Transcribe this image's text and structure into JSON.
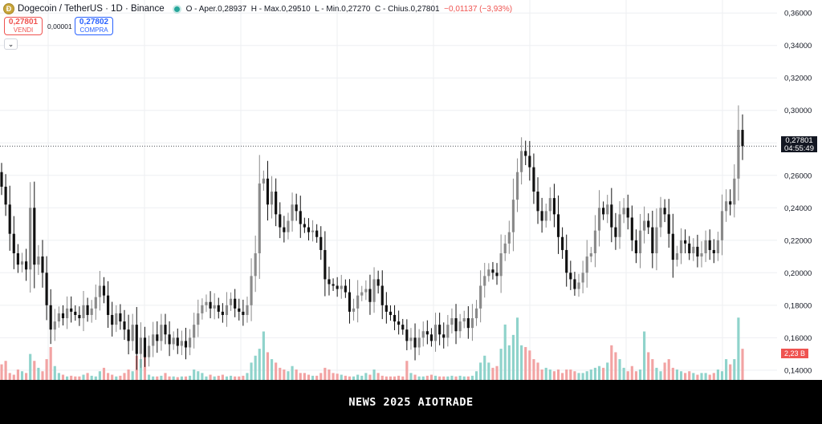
{
  "header": {
    "symbol": "Dogecoin / TetherUS · 1D · Binance",
    "logo_glyph": "Ð",
    "ohlc_prefix": "O - Aper.",
    "open": "0,28937",
    "high_prefix": "H - Max.",
    "high": "0,29510",
    "low_prefix": "L - Min.",
    "low": "0,27270",
    "close_prefix": "C - Chius.",
    "close": "0,27801",
    "change": "−0,01137 (−3,93%)",
    "status_color": "#26a69a"
  },
  "trade": {
    "sell_price": "0,27801",
    "sell_label": "VENDI",
    "spread": "0,00001",
    "buy_price": "0,27802",
    "buy_label": "COMPRA",
    "collapse_icon": "chevron-down-icon"
  },
  "price_tag": {
    "price": "0,27801",
    "countdown": "04:55:49"
  },
  "volume_tag": "2,23 B",
  "footer_text": "NEWS 2025 AIOTRADE",
  "colors": {
    "up": "#8a8a8a",
    "down": "#111111",
    "vol_up": "#8fd3cb",
    "vol_down": "#f2a3a3",
    "grid": "#eeeff2",
    "text": "#131722"
  },
  "chart_data": {
    "type": "candlestick",
    "timeframe": "1D",
    "ylim": [
      0.134,
      0.368
    ],
    "y_ticks": [
      "0,14000",
      "0,16000",
      "0,18000",
      "0,20000",
      "0,22000",
      "0,24000",
      "0,26000",
      "0,28000",
      "0,30000",
      "0,32000",
      "0,34000",
      "0,36000"
    ],
    "grid": true,
    "ohlc_note": "approximate daily close values read from the chart; open = previous close",
    "closes": [
      0.253,
      0.242,
      0.224,
      0.212,
      0.205,
      0.207,
      0.202,
      0.24,
      0.205,
      0.21,
      0.2,
      0.18,
      0.165,
      0.17,
      0.175,
      0.172,
      0.178,
      0.176,
      0.174,
      0.172,
      0.18,
      0.174,
      0.178,
      0.185,
      0.192,
      0.186,
      0.174,
      0.168,
      0.175,
      0.17,
      0.165,
      0.158,
      0.168,
      0.15,
      0.16,
      0.148,
      0.155,
      0.162,
      0.158,
      0.168,
      0.162,
      0.156,
      0.16,
      0.155,
      0.158,
      0.154,
      0.16,
      0.168,
      0.175,
      0.18,
      0.182,
      0.178,
      0.18,
      0.176,
      0.174,
      0.18,
      0.184,
      0.178,
      0.176,
      0.174,
      0.18,
      0.198,
      0.212,
      0.255,
      0.258,
      0.242,
      0.25,
      0.236,
      0.228,
      0.225,
      0.232,
      0.242,
      0.238,
      0.23,
      0.228,
      0.225,
      0.226,
      0.222,
      0.214,
      0.196,
      0.193,
      0.192,
      0.19,
      0.192,
      0.188,
      0.176,
      0.178,
      0.186,
      0.188,
      0.19,
      0.182,
      0.196,
      0.192,
      0.18,
      0.176,
      0.174,
      0.17,
      0.168,
      0.165,
      0.158,
      0.16,
      0.154,
      0.16,
      0.164,
      0.162,
      0.158,
      0.168,
      0.162,
      0.16,
      0.168,
      0.172,
      0.164,
      0.17,
      0.172,
      0.166,
      0.172,
      0.178,
      0.192,
      0.198,
      0.202,
      0.2,
      0.198,
      0.212,
      0.218,
      0.225,
      0.245,
      0.262,
      0.275,
      0.272,
      0.265,
      0.25,
      0.238,
      0.232,
      0.238,
      0.246,
      0.236,
      0.222,
      0.214,
      0.2,
      0.196,
      0.19,
      0.194,
      0.2,
      0.21,
      0.212,
      0.226,
      0.24,
      0.236,
      0.242,
      0.228,
      0.222,
      0.236,
      0.24,
      0.234,
      0.22,
      0.212,
      0.226,
      0.232,
      0.228,
      0.212,
      0.228,
      0.24,
      0.236,
      0.224,
      0.208,
      0.212,
      0.22,
      0.218,
      0.212,
      0.216,
      0.21,
      0.212,
      0.22,
      0.214,
      0.212,
      0.22,
      0.238,
      0.244,
      0.242,
      0.258,
      0.288,
      0.278
    ],
    "volumes_B": [
      0.45,
      0.55,
      0.2,
      0.15,
      0.3,
      0.25,
      0.2,
      0.75,
      0.55,
      0.35,
      0.25,
      0.6,
      0.95,
      0.4,
      0.2,
      0.15,
      0.1,
      0.12,
      0.1,
      0.1,
      0.15,
      0.2,
      0.12,
      0.1,
      0.25,
      0.35,
      0.2,
      0.15,
      0.1,
      0.12,
      0.2,
      0.3,
      0.25,
      0.7,
      0.6,
      0.9,
      0.15,
      0.1,
      0.1,
      0.12,
      0.2,
      0.1,
      0.1,
      0.08,
      0.1,
      0.1,
      0.12,
      0.3,
      0.25,
      0.2,
      0.1,
      0.15,
      0.1,
      0.12,
      0.15,
      0.1,
      0.12,
      0.1,
      0.1,
      0.12,
      0.2,
      0.5,
      0.7,
      0.9,
      1.4,
      0.8,
      0.6,
      0.5,
      0.35,
      0.3,
      0.25,
      0.4,
      0.3,
      0.2,
      0.2,
      0.15,
      0.12,
      0.12,
      0.2,
      0.35,
      0.3,
      0.2,
      0.18,
      0.15,
      0.12,
      0.1,
      0.1,
      0.15,
      0.12,
      0.2,
      0.15,
      0.3,
      0.2,
      0.12,
      0.1,
      0.1,
      0.1,
      0.12,
      0.1,
      0.55,
      0.2,
      0.15,
      0.1,
      0.1,
      0.12,
      0.15,
      0.12,
      0.1,
      0.1,
      0.1,
      0.12,
      0.1,
      0.12,
      0.1,
      0.1,
      0.12,
      0.25,
      0.5,
      0.7,
      0.5,
      0.35,
      0.4,
      0.9,
      1.6,
      1.0,
      1.3,
      1.8,
      1.0,
      0.95,
      0.85,
      0.6,
      0.5,
      0.3,
      0.35,
      0.3,
      0.25,
      0.3,
      0.2,
      0.3,
      0.3,
      0.25,
      0.2,
      0.2,
      0.25,
      0.3,
      0.35,
      0.4,
      0.35,
      0.5,
      1.0,
      0.8,
      0.6,
      0.35,
      0.25,
      0.4,
      0.25,
      0.3,
      1.4,
      0.8,
      0.6,
      0.35,
      0.25,
      0.5,
      0.6,
      0.35,
      0.3,
      0.25,
      0.2,
      0.25,
      0.2,
      0.15,
      0.2,
      0.2,
      0.15,
      0.2,
      0.3,
      0.25,
      0.6,
      0.45,
      0.6,
      1.8,
      0.9
    ],
    "last_price": 0.27801,
    "last_volume": "2,23 B"
  }
}
